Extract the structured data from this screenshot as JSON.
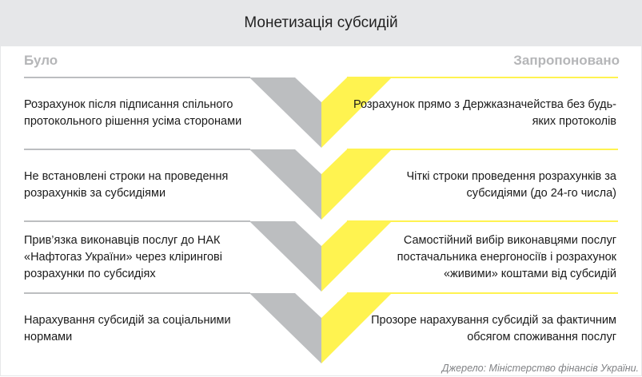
{
  "title": "Монетизація субсидій",
  "left_header": "Було",
  "right_header": "Запропоновано",
  "rows": [
    {
      "before": "Розрахунок після підписання спільного протокольного рішення усіма сторонами",
      "after": "Розрахунок прямо з Держказначейства без будь-яких протоколів"
    },
    {
      "before": "Не встановлені строки  на проведення розрахунків за субсидіями",
      "after": "Чіткі строки проведення розрахунків за субсидіями (до 24-го числа)"
    },
    {
      "before": "Прив’язка  виконавців послуг до НАК «Нафтогаз України» через клірингові розрахунки по субсидіях",
      "after": "Самостійний вибір виконавцями послуг постачальника  енергоносіїв і розрахунок «живими» коштами від субсидій"
    },
    {
      "before": "Нарахування субсидій  за  соціальними нормами",
      "after": "Прозоре нарахування  субсидій за фактичним обсягом споживання послуг"
    }
  ],
  "source": "Джерело: Міністерство фінансів України.",
  "colors": {
    "header_bg": "#e6e7e9",
    "before": "#bcbec0",
    "after": "#fff350"
  }
}
